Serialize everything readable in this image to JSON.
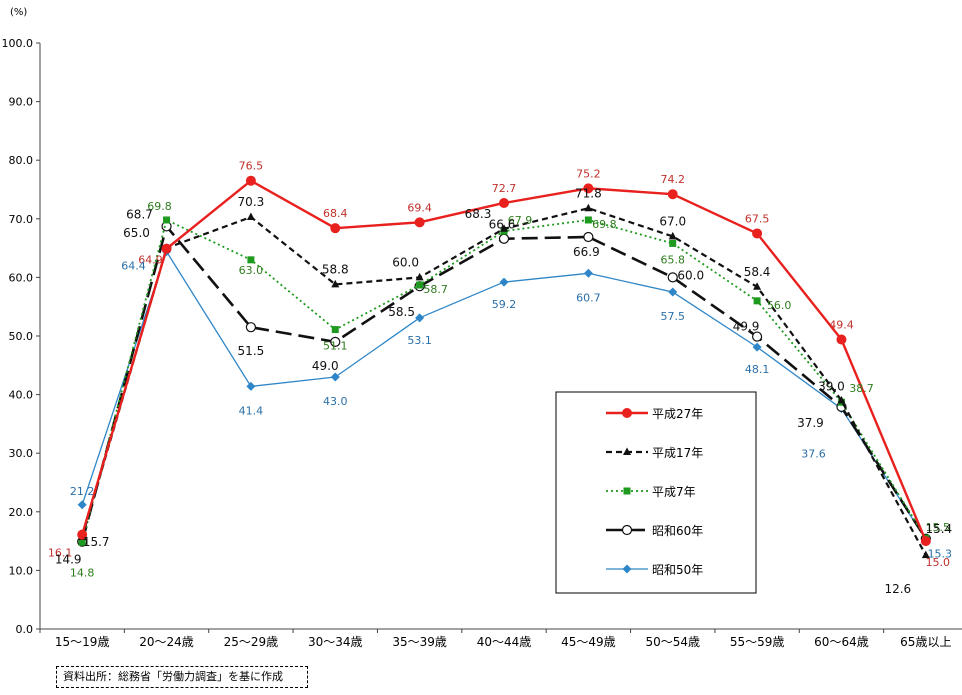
{
  "chart_data": {
    "type": "line",
    "title": "",
    "xlabel": "",
    "ylabel": "(%)",
    "ylim": [
      0,
      100
    ],
    "yticks": [
      "0.0",
      "10.0",
      "20.0",
      "30.0",
      "40.0",
      "50.0",
      "60.0",
      "70.0",
      "80.0",
      "90.0",
      "100.0"
    ],
    "grid": false,
    "legend_position": "lower-right",
    "categories": [
      "15～19歳",
      "20～24歳",
      "25～29歳",
      "30～34歳",
      "35～39歳",
      "40～44歳",
      "45～49歳",
      "50～54歳",
      "55～59歳",
      "60～64歳",
      "65歳以上"
    ],
    "series": [
      {
        "name": "平成27年",
        "color": "#e8201e",
        "label_color": "#c0302a",
        "line": "solid",
        "marker": "circle",
        "values": [
          16.1,
          64.9,
          76.5,
          68.4,
          69.4,
          72.7,
          75.2,
          74.2,
          67.5,
          49.4,
          15.0
        ],
        "labels": [
          "16.1",
          "64.9",
          "76.5",
          "68.4",
          "69.4",
          "72.7",
          "75.2",
          "74.2",
          "67.5",
          "49.4",
          "15.0"
        ]
      },
      {
        "name": "平成17年",
        "color": "#111111",
        "label_color": "#111111",
        "line": "dashed",
        "marker": "triangle",
        "values": [
          15.7,
          65.0,
          70.3,
          58.8,
          60.0,
          68.3,
          71.8,
          67.0,
          58.4,
          39.0,
          12.6
        ],
        "labels": [
          "15.7",
          "65.0",
          "70.3",
          "58.8",
          "60.0",
          "68.3",
          "71.8",
          "67.0",
          "58.4",
          "39.0",
          "12.6"
        ]
      },
      {
        "name": "平成7年",
        "color": "#1e9a1e",
        "label_color": "#2e7d1e",
        "line": "dotted",
        "marker": "square",
        "values": [
          14.8,
          69.8,
          63.0,
          51.1,
          58.7,
          67.9,
          69.8,
          65.8,
          56.0,
          38.7,
          15.5
        ],
        "labels": [
          "14.8",
          "69.8",
          "63.0",
          "51.1",
          "58.7",
          "67.9",
          "69.8",
          "65.8",
          "56.0",
          "38.7",
          "15.5"
        ]
      },
      {
        "name": "昭和60年",
        "color": "#111111",
        "label_color": "#111111",
        "line": "longdash",
        "marker": "open-circle",
        "values": [
          14.9,
          68.7,
          51.5,
          49.0,
          58.5,
          66.6,
          66.9,
          60.0,
          49.9,
          37.9,
          15.4
        ],
        "labels": [
          "14.9",
          "68.7",
          "51.5",
          "49.0",
          "58.5",
          "66.6",
          "66.9",
          "60.0",
          "49.9",
          "37.9",
          "15.4"
        ]
      },
      {
        "name": "昭和50年",
        "color": "#2e86c8",
        "label_color": "#2a6fa8",
        "line": "solid-thin",
        "marker": "diamond",
        "values": [
          21.2,
          64.4,
          41.4,
          43.0,
          53.1,
          59.2,
          60.7,
          57.5,
          48.1,
          37.6,
          15.3
        ],
        "labels": [
          "21.2",
          "64.4",
          "41.4",
          "43.0",
          "53.1",
          "59.2",
          "60.7",
          "57.5",
          "48.1",
          "37.6",
          "15.3"
        ]
      }
    ]
  },
  "source_note": "資料出所：総務省「労働力調査」を基に作成"
}
